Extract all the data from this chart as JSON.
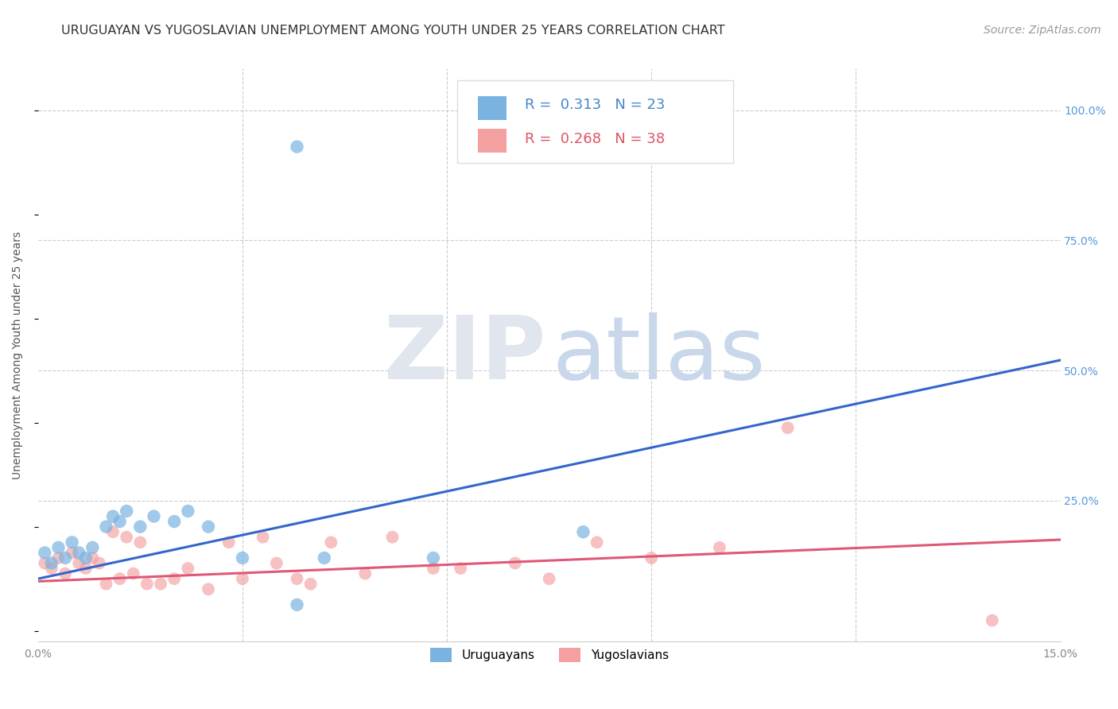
{
  "title": "URUGUAYAN VS YUGOSLAVIAN UNEMPLOYMENT AMONG YOUTH UNDER 25 YEARS CORRELATION CHART",
  "source": "Source: ZipAtlas.com",
  "ylabel": "Unemployment Among Youth under 25 years",
  "xlim": [
    0.0,
    0.15
  ],
  "ylim": [
    -0.02,
    1.08
  ],
  "uruguayan_color": "#7ab3e0",
  "yugoslavian_color": "#f4a0a0",
  "line_blue": "#3366cc",
  "line_pink": "#e05878",
  "R_uruguayan": 0.313,
  "N_uruguayan": 23,
  "R_yugoslavian": 0.268,
  "N_yugoslavian": 38,
  "uruguayan_x": [
    0.001,
    0.002,
    0.003,
    0.004,
    0.005,
    0.006,
    0.007,
    0.008,
    0.01,
    0.011,
    0.012,
    0.013,
    0.015,
    0.017,
    0.02,
    0.022,
    0.025,
    0.03,
    0.038,
    0.042,
    0.058,
    0.08,
    0.038
  ],
  "uruguayan_y": [
    0.15,
    0.13,
    0.16,
    0.14,
    0.17,
    0.15,
    0.14,
    0.16,
    0.2,
    0.22,
    0.21,
    0.23,
    0.2,
    0.22,
    0.21,
    0.23,
    0.2,
    0.14,
    0.05,
    0.14,
    0.14,
    0.19,
    0.93
  ],
  "yugoslavian_x": [
    0.001,
    0.002,
    0.003,
    0.004,
    0.005,
    0.006,
    0.007,
    0.008,
    0.009,
    0.01,
    0.011,
    0.012,
    0.013,
    0.014,
    0.015,
    0.016,
    0.018,
    0.02,
    0.022,
    0.025,
    0.028,
    0.03,
    0.033,
    0.035,
    0.038,
    0.04,
    0.043,
    0.048,
    0.052,
    0.058,
    0.062,
    0.07,
    0.075,
    0.082,
    0.09,
    0.1,
    0.11,
    0.14
  ],
  "yugoslavian_y": [
    0.13,
    0.12,
    0.14,
    0.11,
    0.15,
    0.13,
    0.12,
    0.14,
    0.13,
    0.09,
    0.19,
    0.1,
    0.18,
    0.11,
    0.17,
    0.09,
    0.09,
    0.1,
    0.12,
    0.08,
    0.17,
    0.1,
    0.18,
    0.13,
    0.1,
    0.09,
    0.17,
    0.11,
    0.18,
    0.12,
    0.12,
    0.13,
    0.1,
    0.17,
    0.14,
    0.16,
    0.39,
    0.02
  ],
  "blue_line_x0": 0.0,
  "blue_line_y0": 0.1,
  "blue_line_x1": 0.15,
  "blue_line_y1": 0.52,
  "pink_line_x0": 0.0,
  "pink_line_y0": 0.095,
  "pink_line_x1": 0.15,
  "pink_line_y1": 0.175,
  "background_color": "#ffffff",
  "grid_color": "#cccccc",
  "axis_color": "#cccccc",
  "title_fontsize": 11.5,
  "label_fontsize": 10,
  "tick_fontsize": 10,
  "legend_fontsize": 13,
  "source_fontsize": 10
}
